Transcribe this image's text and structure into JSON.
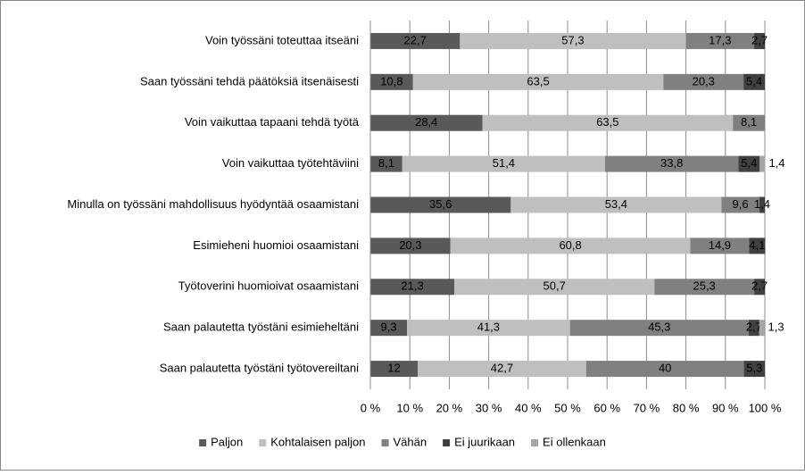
{
  "chart_data": {
    "type": "stacked-bar-horizontal",
    "categories": [
      "Voin työssäni toteuttaa itseäni",
      "Saan työssäni tehdä päätöksiä itsenäisesti",
      "Voin vaikuttaa tapaani tehdä työtä",
      "Voin vaikuttaa työtehtäviini",
      "Minulla on työssäni mahdollisuus hyödyntää osaamistani",
      "Esimieheni huomioi osaamistani",
      "Työtoverini huomioivat osaamistani",
      "Saan palautetta työstäni esimieheltäni",
      "Saan palautetta työstäni työtovereiltani"
    ],
    "series": [
      {
        "name": "Paljon",
        "color": "#595959",
        "values": [
          22.7,
          10.8,
          28.4,
          8.1,
          35.6,
          20.3,
          21.3,
          9.3,
          12
        ],
        "value_labels": [
          "22,7",
          "10,8",
          "28,4",
          "8,1",
          "35,6",
          "20,3",
          "21,3",
          "9,3",
          "12"
        ]
      },
      {
        "name": "Kohtalaisen paljon",
        "color": "#bfbfbf",
        "values": [
          57.3,
          63.5,
          63.5,
          51.4,
          53.4,
          60.8,
          50.7,
          41.3,
          42.7
        ],
        "value_labels": [
          "57,3",
          "63,5",
          "63,5",
          "51,4",
          "53,4",
          "60,8",
          "50,7",
          "41,3",
          "42,7"
        ]
      },
      {
        "name": "Vähän",
        "color": "#808080",
        "values": [
          17.3,
          20.3,
          8.1,
          33.8,
          9.6,
          14.9,
          25.3,
          45.3,
          40
        ],
        "value_labels": [
          "17,3",
          "20,3",
          "8,1",
          "33,8",
          "9,6",
          "14,9",
          "25,3",
          "45,3",
          "40"
        ]
      },
      {
        "name": "Ei juurikaan",
        "color": "#404040",
        "values": [
          2.7,
          5.4,
          null,
          5.4,
          1.4,
          4.1,
          2.7,
          2.7,
          5.3
        ],
        "value_labels": [
          "2,7",
          "5,4",
          null,
          "5,4",
          "1,4",
          "4,1",
          "2,7",
          "2,7",
          "5,3"
        ]
      },
      {
        "name": "Ei ollenkaan",
        "color": "#a6a6a6",
        "values": [
          null,
          null,
          null,
          1.4,
          null,
          null,
          null,
          1.3,
          null
        ],
        "value_labels": [
          null,
          null,
          null,
          "1,4",
          null,
          null,
          null,
          "1,3",
          null
        ]
      }
    ],
    "xlim": [
      0,
      100
    ],
    "xticks": [
      {
        "value": 0,
        "label": "0 %"
      },
      {
        "value": 10,
        "label": "10 %"
      },
      {
        "value": 20,
        "label": "20 %"
      },
      {
        "value": 30,
        "label": "30 %"
      },
      {
        "value": 40,
        "label": "40 %"
      },
      {
        "value": 50,
        "label": "50 %"
      },
      {
        "value": 60,
        "label": "60 %"
      },
      {
        "value": 70,
        "label": "70 %"
      },
      {
        "value": 80,
        "label": "80 %"
      },
      {
        "value": 90,
        "label": "90 %"
      },
      {
        "value": 100,
        "label": "100 %"
      }
    ],
    "grid": true,
    "legend": "bottom"
  }
}
